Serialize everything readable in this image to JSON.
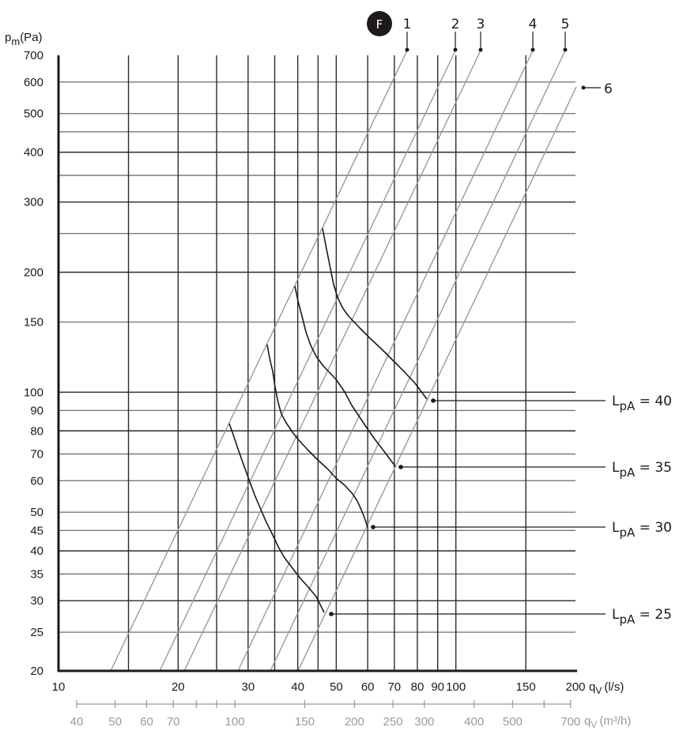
{
  "chart_data": {
    "type": "line",
    "title": "",
    "badge": "F",
    "xlabel": "q_V (l/s)",
    "xlabel_secondary": "q_V (m³/h)",
    "ylabel": "p_m(Pa)",
    "xscale": "log",
    "yscale": "log",
    "xlim": [
      10,
      200
    ],
    "ylim": [
      20,
      700
    ],
    "grid": true,
    "x_ticks": [
      10,
      20,
      30,
      40,
      50,
      60,
      70,
      80,
      90,
      100,
      150,
      200
    ],
    "x_gridlines": [
      15,
      20,
      25,
      30,
      35,
      40,
      45,
      50,
      60,
      70,
      80,
      90,
      100,
      150
    ],
    "x2_ticks_labeled": [
      40,
      50,
      60,
      70,
      100,
      150,
      200,
      250,
      300,
      400,
      500,
      700
    ],
    "x2_ticks_all": [
      40,
      50,
      60,
      70,
      80,
      90,
      100,
      150,
      200,
      250,
      300,
      400,
      500,
      600,
      700
    ],
    "y_ticks": [
      20,
      25,
      30,
      35,
      40,
      45,
      50,
      60,
      70,
      80,
      90,
      100,
      150,
      200,
      300,
      400,
      500,
      600,
      700
    ],
    "y_gridlines": [
      25,
      30,
      35,
      40,
      45,
      50,
      60,
      70,
      80,
      90,
      100,
      150,
      200,
      250,
      300,
      350,
      400,
      450,
      500,
      600
    ],
    "system_lines": [
      {
        "name": "1",
        "points_ls_pa": [
          [
            14.3,
            20
          ],
          [
            75,
            700
          ]
        ]
      },
      {
        "name": "2",
        "points_ls_pa": [
          [
            18.2,
            20
          ],
          [
            98,
            700
          ]
        ]
      },
      {
        "name": "3",
        "points_ls_pa": [
          [
            20.6,
            20
          ],
          [
            113,
            700
          ]
        ]
      },
      {
        "name": "4",
        "points_ls_pa": [
          [
            27,
            20
          ],
          [
            152,
            700
          ]
        ]
      },
      {
        "name": "5",
        "points_ls_pa": [
          [
            32,
            20
          ],
          [
            180,
            700
          ]
        ]
      },
      {
        "name": "6",
        "points_ls_pa": [
          [
            36.7,
            20
          ],
          [
            201,
            590
          ]
        ]
      }
    ],
    "series": [
      {
        "name": "LpA = 40",
        "x": [
          46,
          48,
          50,
          53,
          60,
          68,
          77,
          82
        ],
        "y": [
          260,
          205,
          175,
          158,
          138,
          121,
          106,
          97
        ]
      },
      {
        "name": "LpA = 35",
        "x": [
          39,
          41,
          43,
          46,
          50,
          54,
          60,
          66,
          71
        ],
        "y": [
          185,
          155,
          130,
          116,
          106,
          91,
          79,
          70,
          64
        ]
      },
      {
        "name": "LpA = 30",
        "x": [
          33,
          34,
          35,
          37,
          40,
          45,
          50,
          55,
          58,
          60
        ],
        "y": [
          131,
          112,
          93,
          83,
          75,
          67,
          60,
          54,
          49,
          45
        ]
      },
      {
        "name": "LpA = 25",
        "x": [
          27,
          28.5,
          30.5,
          32.7,
          35,
          37.7,
          41.4,
          45.4,
          47.6
        ],
        "y": [
          84,
          74,
          61,
          51,
          44,
          39,
          34,
          30,
          28
        ]
      }
    ]
  },
  "labels": {
    "y_axis_title_main": "p",
    "y_axis_title_sub": "m",
    "y_axis_title_unit": "(Pa)",
    "x_axis_title_main": "q",
    "x_axis_title_sub": "V",
    "x_axis_title_unit": "(l/s)",
    "x2_axis_title_main": "q",
    "x2_axis_title_sub": "V",
    "x2_axis_title_unit": "(m³/h)",
    "badge": "F"
  },
  "callouts": [
    {
      "main": "L",
      "sub": "pA",
      "rest": " = 40"
    },
    {
      "main": "L",
      "sub": "pA",
      "rest": " = 35"
    },
    {
      "main": "L",
      "sub": "pA",
      "rest": " = 30"
    },
    {
      "main": "L",
      "sub": "pA",
      "rest": " = 25"
    }
  ],
  "colors": {
    "grid": "#2a2a2a",
    "grid_light": "#7a7a7a",
    "system_line": "#9a9a9a",
    "curve": "#1a1a1a",
    "secondary_axis": "#9a9a9a",
    "badge_bg": "#1e1a1a",
    "badge_fg": "#ffffff"
  }
}
